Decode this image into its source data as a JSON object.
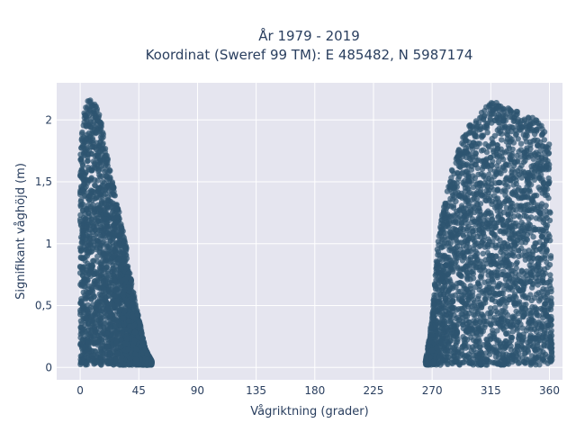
{
  "chart_data": {
    "type": "scatter",
    "title_line1": "År 1979 - 2019",
    "title_line2": "Koordinat (Sweref 99 TM): E 485482, N 5987174",
    "xlabel": "Vågriktning (grader)",
    "ylabel": "Signifikant våghöjd (m)",
    "xlim": [
      -18,
      370
    ],
    "ylim": [
      -0.1,
      2.3
    ],
    "x_ticks": [
      0,
      45,
      90,
      135,
      180,
      225,
      270,
      315,
      360
    ],
    "x_tick_labels": [
      "0",
      "45",
      "90",
      "135",
      "180",
      "225",
      "270",
      "315",
      "360"
    ],
    "y_ticks": [
      0,
      0.5,
      1,
      1.5,
      2
    ],
    "y_tick_labels": [
      "0",
      "0,5",
      "1",
      "1,5",
      "2"
    ],
    "grid": true,
    "legend": "none",
    "series": [
      {
        "marker_color": "#2e5570",
        "clusters": [
          {
            "x_range": [
              0,
              55
            ],
            "envelope": [
              {
                "x": 0,
                "y": 1.7
              },
              {
                "x": 2,
                "y": 2.0
              },
              {
                "x": 5,
                "y": 2.15
              },
              {
                "x": 8,
                "y": 2.17
              },
              {
                "x": 12,
                "y": 2.12
              },
              {
                "x": 16,
                "y": 2.0
              },
              {
                "x": 20,
                "y": 1.75
              },
              {
                "x": 25,
                "y": 1.5
              },
              {
                "x": 30,
                "y": 1.25
              },
              {
                "x": 35,
                "y": 1.0
              },
              {
                "x": 40,
                "y": 0.65
              },
              {
                "x": 45,
                "y": 0.4
              },
              {
                "x": 50,
                "y": 0.15
              },
              {
                "x": 55,
                "y": 0.05
              }
            ]
          },
          {
            "x_range": [
              265,
              362
            ],
            "envelope": [
              {
                "x": 265,
                "y": 0.05
              },
              {
                "x": 270,
                "y": 0.4
              },
              {
                "x": 275,
                "y": 1.1
              },
              {
                "x": 280,
                "y": 1.35
              },
              {
                "x": 285,
                "y": 1.6
              },
              {
                "x": 290,
                "y": 1.75
              },
              {
                "x": 295,
                "y": 1.9
              },
              {
                "x": 300,
                "y": 2.0
              },
              {
                "x": 305,
                "y": 2.05
              },
              {
                "x": 310,
                "y": 2.1
              },
              {
                "x": 315,
                "y": 2.15
              },
              {
                "x": 320,
                "y": 2.15
              },
              {
                "x": 325,
                "y": 2.1
              },
              {
                "x": 330,
                "y": 2.1
              },
              {
                "x": 335,
                "y": 2.1
              },
              {
                "x": 340,
                "y": 2.0
              },
              {
                "x": 345,
                "y": 2.05
              },
              {
                "x": 350,
                "y": 2.0
              },
              {
                "x": 355,
                "y": 1.95
              },
              {
                "x": 360,
                "y": 1.8
              },
              {
                "x": 362,
                "y": 0.1
              }
            ]
          }
        ]
      }
    ]
  }
}
